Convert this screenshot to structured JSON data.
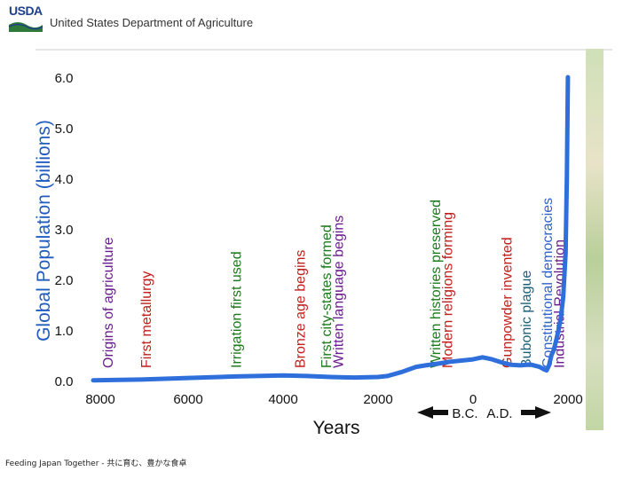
{
  "header": {
    "logo_text": "USDA",
    "org_name": "United States Department of Agriculture"
  },
  "footer": {
    "text": "Feeding Japan Together - 共に育む、豊かな食卓"
  },
  "colors": {
    "line": "#2e6fdc",
    "axis_title": "#1f5bbf",
    "purple": "#6a1d8e",
    "red": "#c0201c",
    "green": "#1b7a1b",
    "teal": "#1d5f7a",
    "blue_event": "#2f63c8"
  },
  "chart_data": {
    "type": "line",
    "title": "",
    "xlabel": "Years",
    "ylabel": "Global Population (billions)",
    "xlim": [
      -8000,
      2000
    ],
    "ylim": [
      0,
      6
    ],
    "x_ticks": [
      "8000",
      "6000",
      "4000",
      "2000",
      "0",
      "2000"
    ],
    "x_tick_values": [
      -8000,
      -6000,
      -4000,
      -2000,
      0,
      2000
    ],
    "y_ticks": [
      "0.0",
      "1.0",
      "2.0",
      "3.0",
      "4.0",
      "5.0",
      "6.0"
    ],
    "y_tick_values": [
      0,
      1,
      2,
      3,
      4,
      5,
      6
    ],
    "era_labels": {
      "bc": "B.C.",
      "ad": "A.D."
    },
    "series": [
      {
        "name": "Global Population",
        "x": [
          -8000,
          -7000,
          -6000,
          -5000,
          -4000,
          -3500,
          -3000,
          -2500,
          -2000,
          -1800,
          -1500,
          -1200,
          -1000,
          -700,
          -500,
          0,
          200,
          400,
          600,
          800,
          1000,
          1200,
          1400,
          1500,
          1550,
          1600,
          1650,
          1700,
          1750,
          1800,
          1850,
          1900,
          1950,
          1975,
          1999
        ],
        "values": [
          0.005,
          0.02,
          0.05,
          0.08,
          0.1,
          0.09,
          0.07,
          0.06,
          0.07,
          0.09,
          0.17,
          0.27,
          0.3,
          0.34,
          0.37,
          0.42,
          0.46,
          0.42,
          0.36,
          0.31,
          0.3,
          0.32,
          0.27,
          0.22,
          0.2,
          0.3,
          0.5,
          0.6,
          0.79,
          1.0,
          1.26,
          1.65,
          2.52,
          4.0,
          6.0
        ]
      }
    ],
    "annotations": [
      {
        "text": "Origins of agriculture",
        "x": -7700,
        "color": "purple"
      },
      {
        "text": "First metallurgy",
        "x": -6900,
        "color": "red"
      },
      {
        "text": "Irrigation first used",
        "x": -5000,
        "color": "green"
      },
      {
        "text": "Bronze age begins",
        "x": -3650,
        "color": "red"
      },
      {
        "text": "First city-states formed",
        "x": -3100,
        "color": "green"
      },
      {
        "text": "Written language begins",
        "x": -2850,
        "color": "purple"
      },
      {
        "text": "Written histories preserved",
        "x": -800,
        "color": "green"
      },
      {
        "text": "Modern religions forming",
        "x": -550,
        "color": "red"
      },
      {
        "text": "Gunpowder invented",
        "x": 700,
        "color": "red"
      },
      {
        "text": "Bubonic plague",
        "x": 1100,
        "color": "teal"
      },
      {
        "text": "Constitutional democracies",
        "x": 1550,
        "color": "blue_event"
      },
      {
        "text": "Industrial Revolution",
        "x": 1800,
        "color": "purple"
      }
    ]
  }
}
